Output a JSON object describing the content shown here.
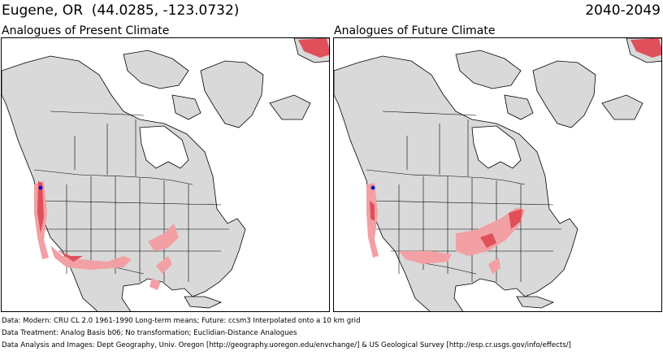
{
  "header": {
    "location": "Eugene, OR  (44.0285, -123.0732)",
    "period": "2040-2049"
  },
  "panels": [
    {
      "title": "Analogues of Present Climate",
      "highlight": "present"
    },
    {
      "title": "Analogues of Future Climate",
      "highlight": "future"
    }
  ],
  "footer": {
    "data": "Data:  Modern: CRU CL 2.0 1961-1990 Long-term means; Future: ccsm3 Interpolated onto a 10 km grid",
    "treatment": "Data Treatment:  Analog Basis b06; No transformation; Euclidian-Distance Analogues",
    "analysis": "Data Analysis and Images:  Dept Geography, Univ. Oregon [http://geography.uoregon.edu/envchange/] & US Geological Survey [http://esp.cr.usgs.gov/info/effects/]"
  },
  "colors": {
    "land": "#d9d9d9",
    "water": "#ffffff",
    "analog_light": "#f2a0a4",
    "analog_strong": "#e0505a",
    "target_point": "#1010c0",
    "borders": "#000000"
  }
}
